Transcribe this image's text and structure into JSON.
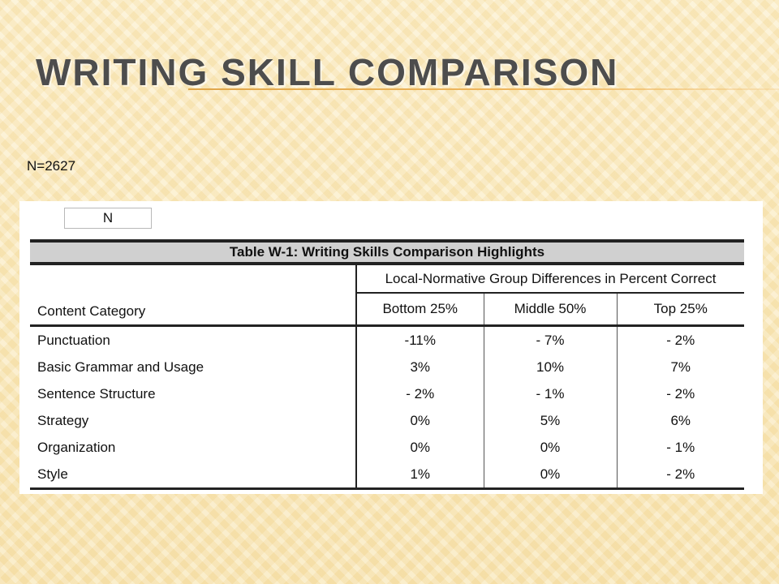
{
  "slide": {
    "title": "Writing Skill Comparison",
    "n_count": "N=2627"
  },
  "table": {
    "n_box_label": "N",
    "caption": "Table W-1: Writing Skills Comparison Highlights",
    "group_header": "Local-Normative Group Differences in Percent Correct",
    "category_header": "Content Category",
    "columns": [
      "Bottom 25%",
      "Middle 50%",
      "Top 25%"
    ],
    "rows": [
      {
        "category": "Punctuation",
        "values": [
          "-11%",
          "- 7%",
          "- 2%"
        ]
      },
      {
        "category": "Basic Grammar and Usage",
        "values": [
          "3%",
          "10%",
          "7%"
        ]
      },
      {
        "category": "Sentence Structure",
        "values": [
          "- 2%",
          "- 1%",
          "- 2%"
        ]
      },
      {
        "category": "Strategy",
        "values": [
          "0%",
          "5%",
          "6%"
        ]
      },
      {
        "category": "Organization",
        "values": [
          "0%",
          "0%",
          "- 1%"
        ]
      },
      {
        "category": "Style",
        "values": [
          "1%",
          "0%",
          "- 2%"
        ]
      }
    ]
  }
}
